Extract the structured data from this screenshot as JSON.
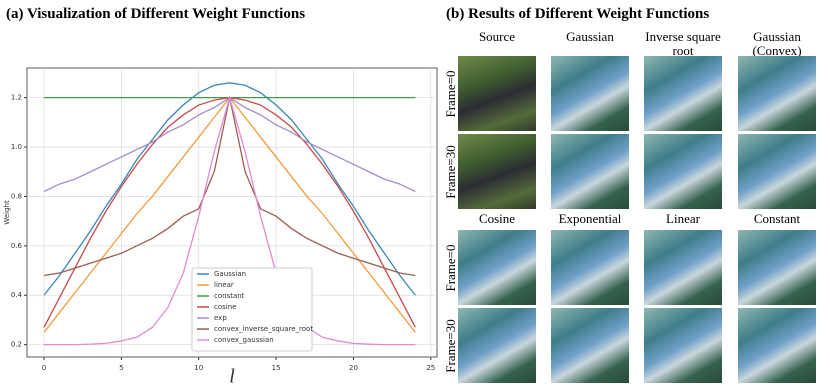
{
  "chart_data": {
    "type": "line",
    "title": "(a) Visualization of Different Weight Functions",
    "x_label": "l",
    "y_label": "Weight",
    "x": [
      0,
      1,
      2,
      3,
      4,
      5,
      6,
      7,
      8,
      9,
      10,
      11,
      12,
      13,
      14,
      15,
      16,
      17,
      18,
      19,
      20,
      21,
      22,
      23,
      24
    ],
    "series": [
      {
        "name": "Gaussian",
        "color": "#3a87b8",
        "values": [
          0.4,
          0.48,
          0.57,
          0.66,
          0.76,
          0.85,
          0.95,
          1.03,
          1.11,
          1.17,
          1.22,
          1.25,
          1.26,
          1.25,
          1.22,
          1.17,
          1.11,
          1.03,
          0.95,
          0.85,
          0.76,
          0.66,
          0.57,
          0.48,
          0.4
        ]
      },
      {
        "name": "linear",
        "color": "#f39a3c",
        "values": [
          0.25,
          0.33,
          0.41,
          0.49,
          0.57,
          0.65,
          0.73,
          0.8,
          0.88,
          0.96,
          1.04,
          1.12,
          1.2,
          1.12,
          1.04,
          0.96,
          0.88,
          0.8,
          0.73,
          0.65,
          0.57,
          0.49,
          0.41,
          0.33,
          0.25
        ]
      },
      {
        "name": "constant",
        "color": "#3f9f45",
        "values": [
          1.2,
          1.2,
          1.2,
          1.2,
          1.2,
          1.2,
          1.2,
          1.2,
          1.2,
          1.2,
          1.2,
          1.2,
          1.2,
          1.2,
          1.2,
          1.2,
          1.2,
          1.2,
          1.2,
          1.2,
          1.2,
          1.2,
          1.2,
          1.2,
          1.2
        ]
      },
      {
        "name": "cosine",
        "color": "#c84a4a",
        "values": [
          0.27,
          0.39,
          0.51,
          0.63,
          0.74,
          0.84,
          0.93,
          1.01,
          1.08,
          1.13,
          1.17,
          1.19,
          1.2,
          1.19,
          1.17,
          1.13,
          1.08,
          1.01,
          0.93,
          0.84,
          0.74,
          0.63,
          0.51,
          0.39,
          0.27
        ]
      },
      {
        "name": "exp",
        "color": "#a58ccc",
        "values": [
          0.82,
          0.85,
          0.87,
          0.9,
          0.93,
          0.96,
          0.99,
          1.02,
          1.06,
          1.09,
          1.13,
          1.16,
          1.2,
          1.16,
          1.13,
          1.09,
          1.06,
          1.02,
          0.99,
          0.96,
          0.93,
          0.9,
          0.87,
          0.85,
          0.82
        ]
      },
      {
        "name": "convex_inverse_square_root",
        "color": "#9a5e4f",
        "values": [
          0.48,
          0.49,
          0.51,
          0.53,
          0.55,
          0.57,
          0.6,
          0.63,
          0.67,
          0.72,
          0.75,
          0.9,
          1.2,
          0.9,
          0.75,
          0.72,
          0.67,
          0.63,
          0.6,
          0.57,
          0.55,
          0.53,
          0.51,
          0.49,
          0.48
        ]
      },
      {
        "name": "convex_gaussian",
        "color": "#e58ad0",
        "values": [
          0.2,
          0.2,
          0.2,
          0.202,
          0.205,
          0.215,
          0.23,
          0.27,
          0.35,
          0.49,
          0.72,
          0.98,
          1.2,
          0.98,
          0.72,
          0.49,
          0.35,
          0.27,
          0.23,
          0.215,
          0.205,
          0.202,
          0.2,
          0.2,
          0.2
        ]
      }
    ],
    "xlim": [
      -1.1,
      25.4
    ],
    "ylim": [
      0.15,
      1.32
    ],
    "xticks": [
      0,
      5,
      10,
      15,
      20,
      25
    ],
    "yticks": [
      0.2,
      0.4,
      0.6,
      0.8,
      1.0,
      1.2
    ],
    "grid": true,
    "legend": "lower center"
  },
  "panel_b": {
    "title": "(b) Results of Different Weight Functions",
    "top_columns": [
      "Source",
      "Gaussian",
      "Inverse square root",
      "Gaussian (Convex)"
    ],
    "bottom_columns": [
      "Cosine",
      "Exponential",
      "Linear",
      "Constant"
    ],
    "row_labels": [
      "Frame=0",
      "Frame=30"
    ]
  }
}
